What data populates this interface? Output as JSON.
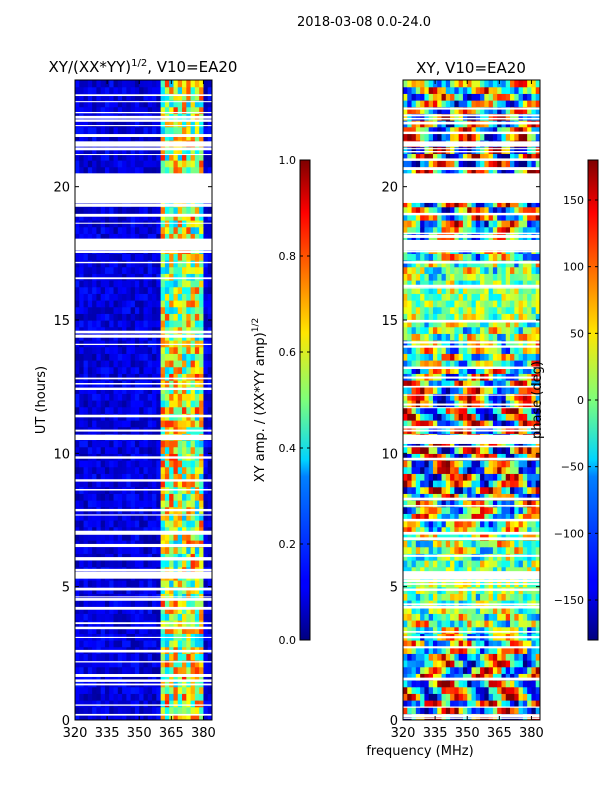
{
  "suptitle": "2018-03-08 0.0-24.0",
  "xlabel_shared": "frequency (MHz)",
  "chart_data": [
    {
      "type": "heatmap",
      "title_main": "XY/(XX*YY)",
      "title_sup": "1/2",
      "title_tail": ", V10=EA20",
      "xlabel": "",
      "ylabel": "UT (hours)",
      "xlim": [
        320,
        384
      ],
      "ylim": [
        0,
        24
      ],
      "xticks": [
        320,
        335,
        350,
        365,
        380
      ],
      "yticks": [
        0,
        5,
        10,
        15,
        20
      ],
      "colormap": "jet",
      "colorbar": {
        "label_main": "XY amp. / (XX*YY amp)",
        "label_sup": "1/2",
        "range": [
          0.0,
          1.0
        ],
        "ticks": [
          0.0,
          0.2,
          0.4,
          0.6,
          0.8,
          1.0
        ],
        "tick_labels": [
          "0.0",
          "0.2",
          "0.4",
          "0.6",
          "0.8",
          "1.0"
        ]
      },
      "bright_band_mhz": [
        361,
        380
      ],
      "flagged_gaps_hours": [
        [
          19.4,
          20.5
        ],
        [
          21.5,
          21.7
        ],
        [
          17.6,
          18.0
        ],
        [
          10.5,
          10.7
        ],
        [
          5.3,
          5.5
        ]
      ]
    },
    {
      "type": "heatmap",
      "title": "XY, V10=EA20",
      "xlabel": "",
      "ylabel": "",
      "xlim": [
        320,
        384
      ],
      "ylim": [
        0,
        24
      ],
      "xticks": [
        320,
        335,
        350,
        365,
        380
      ],
      "yticks": [
        0,
        5,
        10,
        15,
        20
      ],
      "colormap": "jet",
      "colorbar": {
        "label": "phase (deg)",
        "range": [
          -180,
          180
        ],
        "ticks": [
          150,
          100,
          50,
          0,
          -50,
          -100,
          -150
        ],
        "tick_labels": [
          "150",
          "100",
          "50",
          "0",
          "−50",
          "−100",
          "−150"
        ]
      },
      "flagged_gaps_hours": [
        [
          19.4,
          20.5
        ],
        [
          21.5,
          21.7
        ],
        [
          17.6,
          18.0
        ],
        [
          10.5,
          10.7
        ],
        [
          5.3,
          5.5
        ]
      ]
    }
  ]
}
